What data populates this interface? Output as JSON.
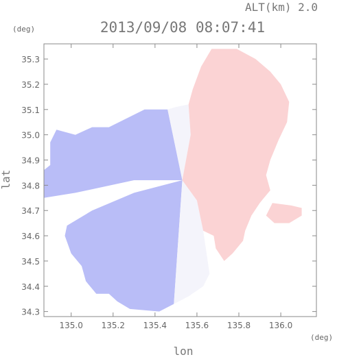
{
  "header": {
    "alt_label": "ALT(km) 2.0",
    "timestamp": "2013/09/08 08:07:41"
  },
  "chart_data": {
    "type": "heatmap",
    "title": "2013/09/08 08:07:41",
    "xlabel": "lon",
    "ylabel": "lat",
    "x_unit": "(deg)",
    "y_unit": "(deg)",
    "xlim": [
      134.87,
      136.17
    ],
    "ylim": [
      34.28,
      35.36
    ],
    "x_ticks": [
      135.0,
      135.2,
      135.4,
      135.6,
      135.8,
      136.0
    ],
    "x_tick_labels": [
      "135.0",
      "135.2",
      "135.4",
      "135.6",
      "135.8",
      "136.0"
    ],
    "y_ticks": [
      34.3,
      34.4,
      34.5,
      34.6,
      34.7,
      34.8,
      34.9,
      35.0,
      35.1,
      35.2,
      35.3
    ],
    "y_tick_labels": [
      "34.3",
      "34.4",
      "34.5",
      "34.6",
      "34.7",
      "34.8",
      "34.9",
      "35.0",
      "35.1",
      "35.2",
      "35.3"
    ],
    "radar_center": {
      "lon": 135.53,
      "lat": 34.82
    },
    "colors": {
      "negative": "#b9bdf7",
      "near_zero": "#f4f4fb",
      "positive": "#fbd3d4",
      "frame": "#8a8a8a"
    },
    "regions": [
      {
        "sign": "negative",
        "polygon": [
          [
            135.53,
            34.82
          ],
          [
            135.46,
            35.1
          ],
          [
            135.35,
            35.1
          ],
          [
            135.18,
            35.03
          ],
          [
            135.1,
            35.03
          ],
          [
            135.02,
            35.0
          ],
          [
            134.93,
            35.02
          ],
          [
            134.9,
            34.97
          ],
          [
            134.9,
            34.88
          ],
          [
            134.87,
            34.86
          ],
          [
            134.87,
            34.75
          ],
          [
            135.02,
            34.77
          ],
          [
            135.3,
            34.82
          ]
        ]
      },
      {
        "sign": "negative",
        "polygon": [
          [
            135.53,
            34.82
          ],
          [
            135.3,
            34.77
          ],
          [
            135.1,
            34.7
          ],
          [
            134.98,
            34.64
          ],
          [
            134.97,
            34.6
          ],
          [
            135.0,
            34.53
          ],
          [
            135.05,
            34.48
          ],
          [
            135.07,
            34.42
          ],
          [
            135.12,
            34.37
          ],
          [
            135.18,
            34.37
          ],
          [
            135.22,
            34.34
          ],
          [
            135.28,
            34.31
          ],
          [
            135.42,
            34.3
          ],
          [
            135.49,
            34.33
          ]
        ]
      },
      {
        "sign": "near_zero",
        "polygon": [
          [
            135.53,
            34.82
          ],
          [
            135.46,
            35.1
          ],
          [
            135.5,
            35.11
          ],
          [
            135.56,
            35.12
          ],
          [
            135.57,
            35.0
          ]
        ]
      },
      {
        "sign": "near_zero",
        "polygon": [
          [
            135.53,
            34.82
          ],
          [
            135.49,
            34.33
          ],
          [
            135.56,
            34.36
          ],
          [
            135.63,
            34.4
          ],
          [
            135.66,
            34.45
          ],
          [
            135.63,
            34.62
          ],
          [
            135.6,
            34.74
          ]
        ]
      },
      {
        "sign": "positive",
        "polygon": [
          [
            135.53,
            34.82
          ],
          [
            135.57,
            35.0
          ],
          [
            135.56,
            35.12
          ],
          [
            135.58,
            35.18
          ],
          [
            135.62,
            35.27
          ],
          [
            135.67,
            35.34
          ],
          [
            135.79,
            35.34
          ],
          [
            135.88,
            35.3
          ],
          [
            135.95,
            35.25
          ],
          [
            136.0,
            35.2
          ],
          [
            136.04,
            35.13
          ],
          [
            136.03,
            35.05
          ],
          [
            135.99,
            34.98
          ],
          [
            135.95,
            34.9
          ],
          [
            135.93,
            34.84
          ],
          [
            135.95,
            34.78
          ],
          [
            135.9,
            34.73
          ],
          [
            135.86,
            34.68
          ],
          [
            135.83,
            34.62
          ],
          [
            135.82,
            34.58
          ],
          [
            135.77,
            34.53
          ],
          [
            135.73,
            34.5
          ],
          [
            135.69,
            34.55
          ],
          [
            135.68,
            34.6
          ],
          [
            135.63,
            34.62
          ],
          [
            135.6,
            34.74
          ]
        ]
      },
      {
        "sign": "positive",
        "polygon": [
          [
            135.96,
            34.73
          ],
          [
            136.05,
            34.72
          ],
          [
            136.1,
            34.71
          ],
          [
            136.1,
            34.68
          ],
          [
            136.04,
            34.65
          ],
          [
            135.97,
            34.65
          ],
          [
            135.93,
            34.68
          ]
        ]
      }
    ]
  }
}
